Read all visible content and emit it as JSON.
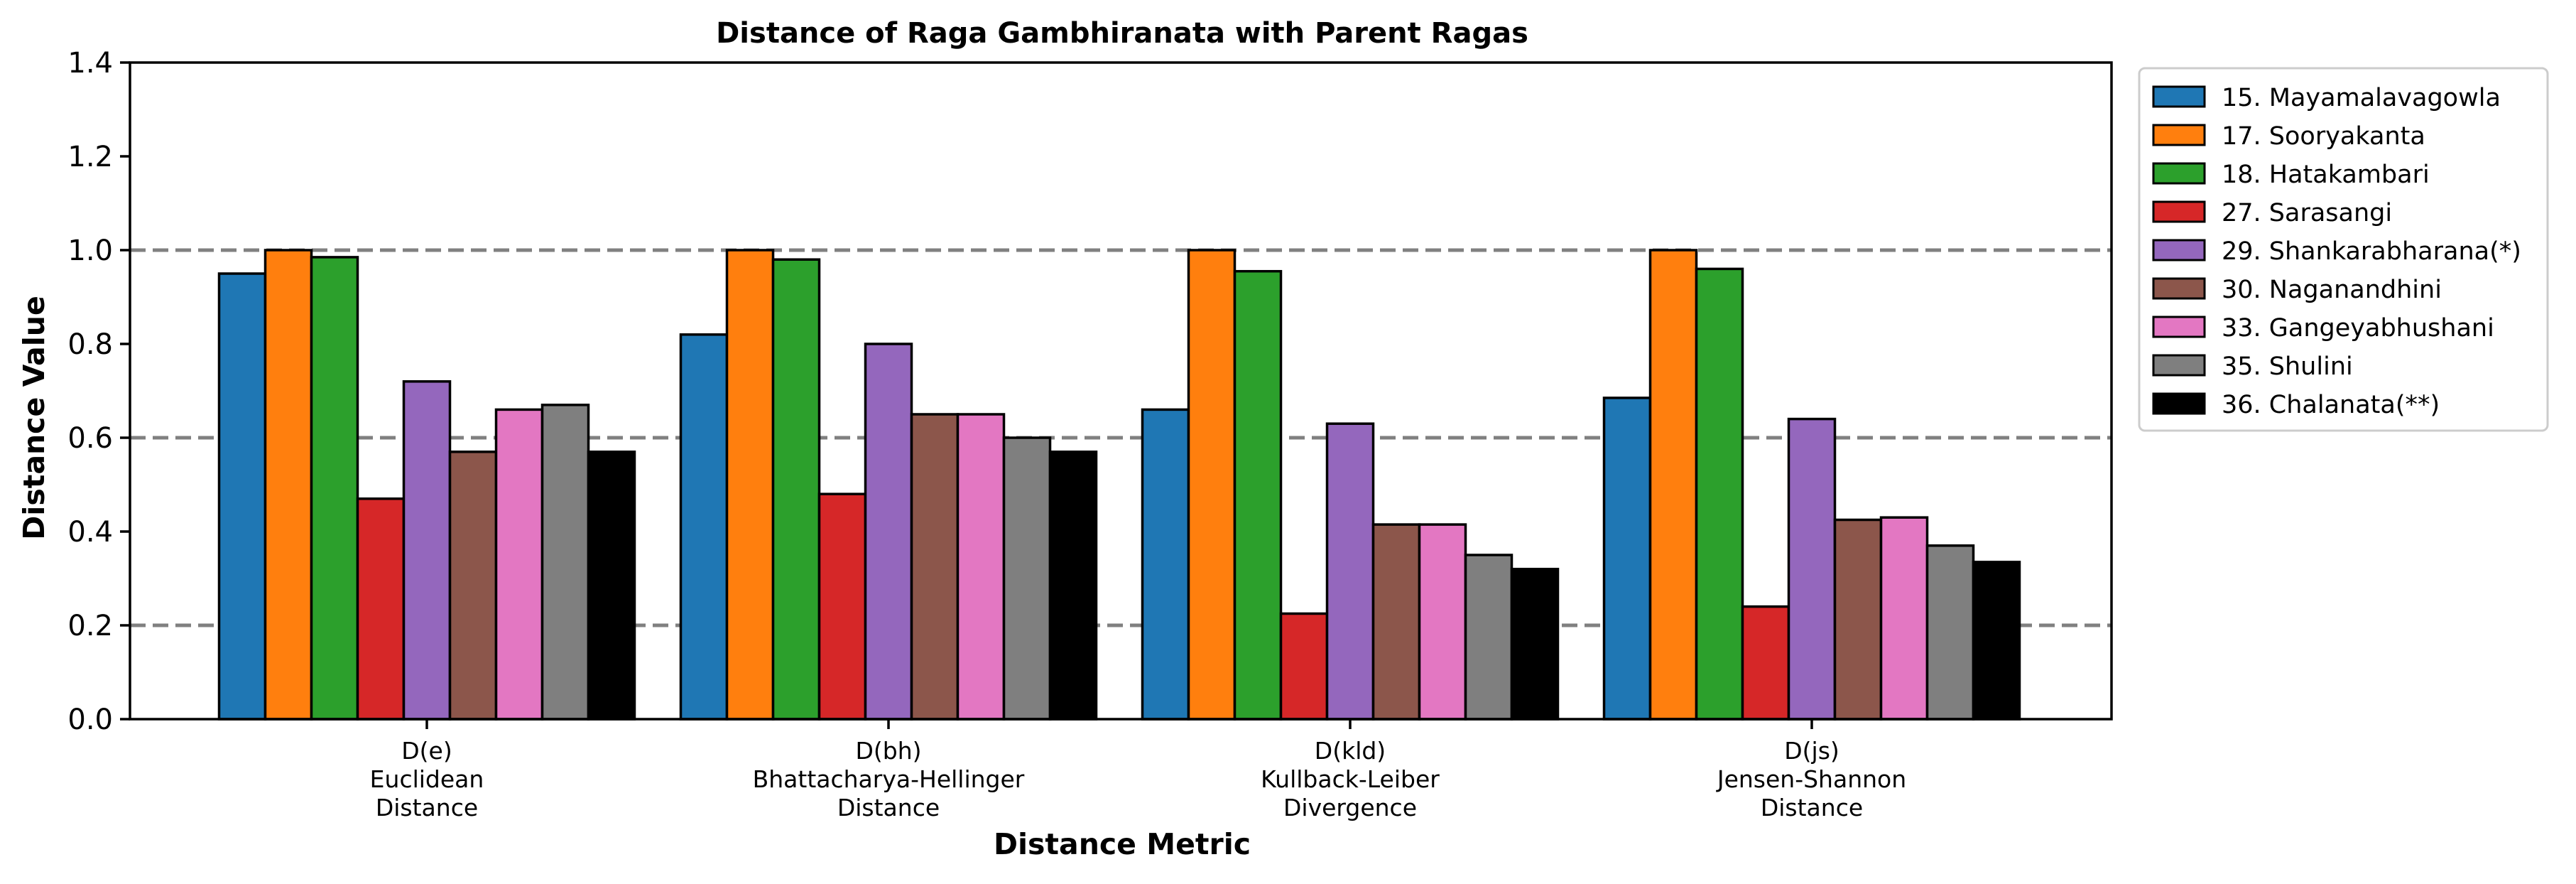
{
  "chart_data": {
    "type": "bar",
    "title": "Distance of Raga Gambhiranata with Parent Ragas",
    "xlabel": "Distance Metric",
    "ylabel": "Distance Value",
    "ylim": [
      0,
      1.4
    ],
    "yticks": [
      "0.0",
      "0.2",
      "0.4",
      "0.6",
      "0.8",
      "1.0",
      "1.2",
      "1.4"
    ],
    "reference_lines": [
      0.2,
      0.6,
      1.0
    ],
    "reference_line_color": "#808080",
    "grid": false,
    "legend_position": "outside-right-top",
    "categories": [
      {
        "lines": [
          "D(e)",
          "Euclidean",
          "Distance"
        ]
      },
      {
        "lines": [
          "D(bh)",
          "Bhattacharya-Hellinger",
          "Distance"
        ]
      },
      {
        "lines": [
          "D(kld)",
          "Kullback-Leiber",
          "Divergence"
        ]
      },
      {
        "lines": [
          "D(js)",
          "Jensen-Shannon",
          "Distance"
        ]
      }
    ],
    "series": [
      {
        "name": "15. Mayamalavagowla",
        "color": "#1f77b4",
        "values": [
          0.95,
          0.82,
          0.66,
          0.685
        ]
      },
      {
        "name": "17. Sooryakanta",
        "color": "#ff7f0e",
        "values": [
          1.0,
          1.0,
          1.0,
          1.0
        ]
      },
      {
        "name": "18. Hatakambari",
        "color": "#2ca02c",
        "values": [
          0.985,
          0.98,
          0.955,
          0.96
        ]
      },
      {
        "name": "27. Sarasangi",
        "color": "#d62728",
        "values": [
          0.47,
          0.48,
          0.225,
          0.24
        ]
      },
      {
        "name": "29. Shankarabharana(*)",
        "color": "#9467bd",
        "values": [
          0.72,
          0.8,
          0.63,
          0.64
        ]
      },
      {
        "name": "30. Naganandhini",
        "color": "#8c564b",
        "values": [
          0.57,
          0.65,
          0.415,
          0.425
        ]
      },
      {
        "name": "33. Gangeyabhushani",
        "color": "#e377c2",
        "values": [
          0.66,
          0.65,
          0.415,
          0.43
        ]
      },
      {
        "name": "35. Shulini",
        "color": "#7f7f7f",
        "values": [
          0.67,
          0.6,
          0.35,
          0.37
        ]
      },
      {
        "name": "36. Chalanata(**)",
        "color": "#000000",
        "values": [
          0.57,
          0.57,
          0.32,
          0.335
        ]
      }
    ]
  }
}
